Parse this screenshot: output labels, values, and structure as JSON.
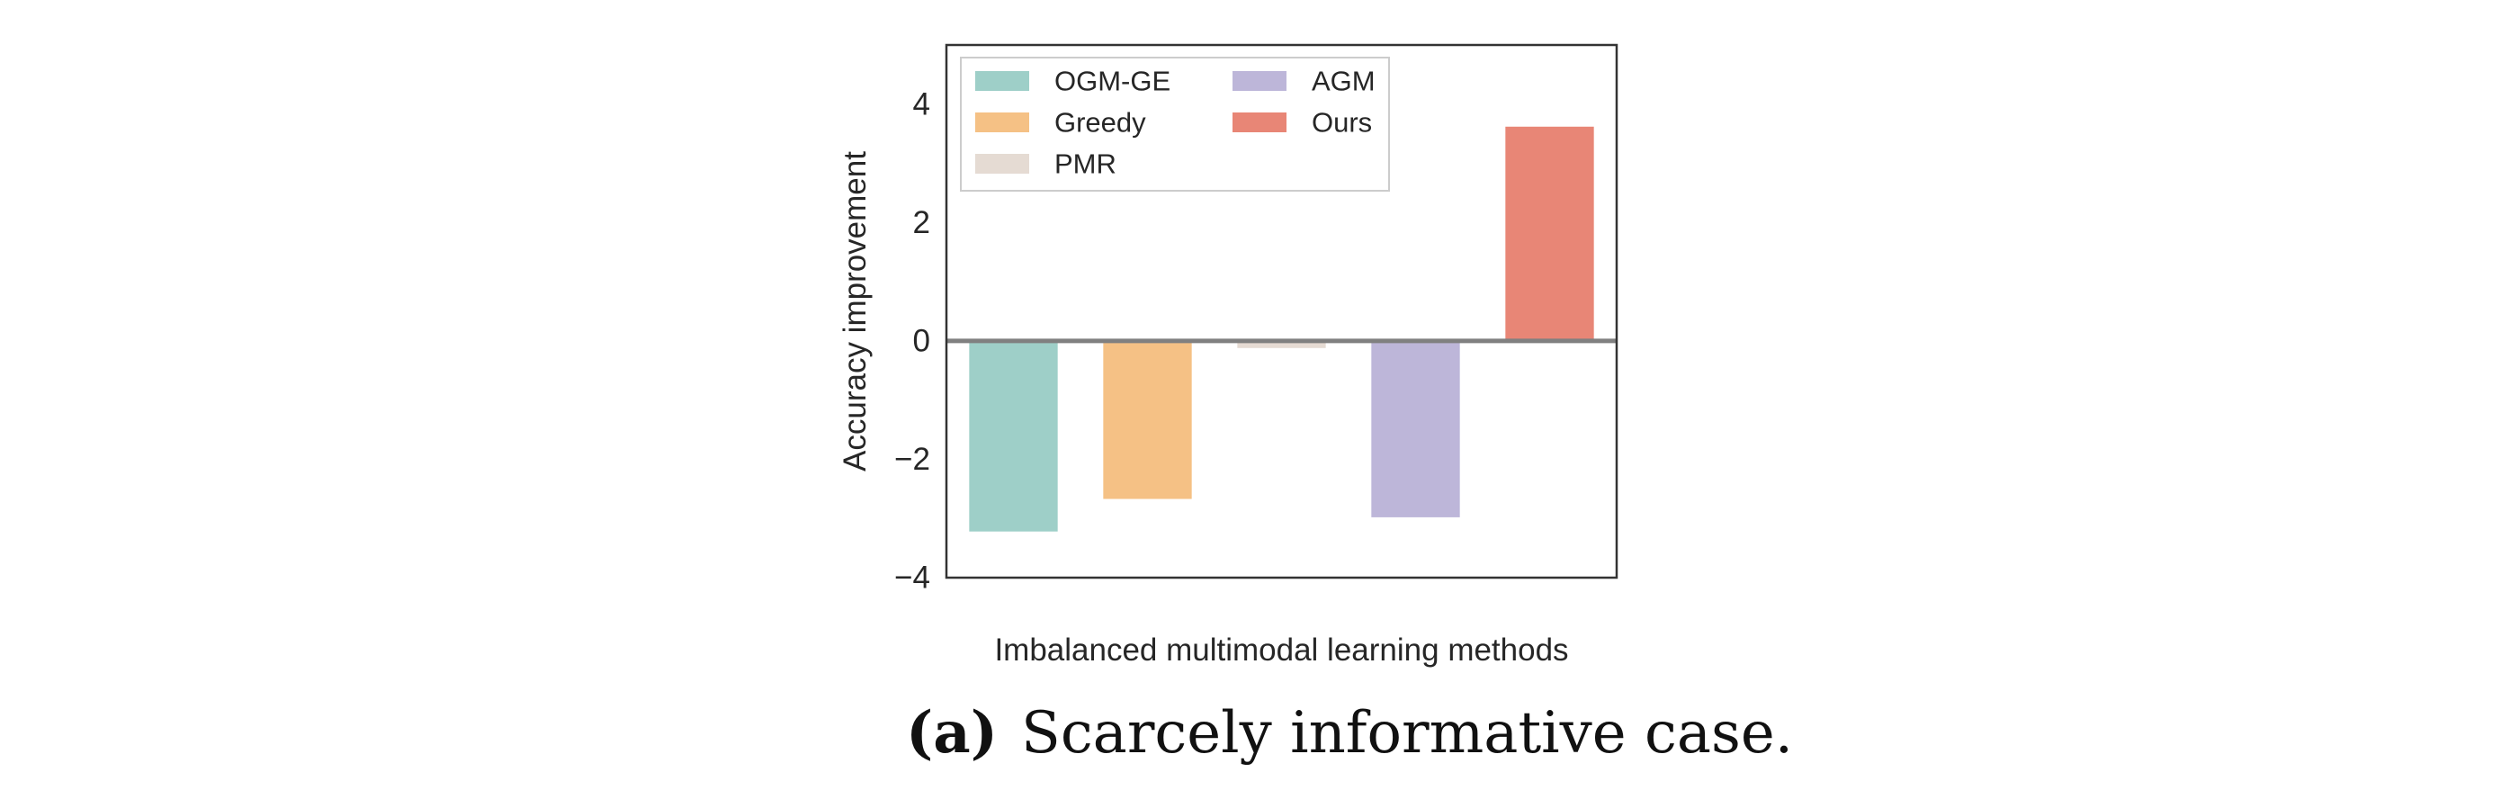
{
  "chart_data": {
    "type": "bar",
    "title": "",
    "xlabel": "Imbalanced multimodal learning methods",
    "ylabel": "Accuracy improvement",
    "ylim": [
      -4,
      5
    ],
    "yticks": [
      4,
      2,
      0,
      -2,
      -4
    ],
    "ytick_labels": [
      "4",
      "2",
      "0",
      "−2",
      "−4"
    ],
    "categories": [
      "OGM-GE",
      "Greedy",
      "PMR",
      "AGM",
      "Ours"
    ],
    "values": [
      -3.22,
      -2.67,
      -0.12,
      -2.98,
      3.62
    ],
    "colors": [
      "#9ecfc8",
      "#f5c185",
      "#e5dbd3",
      "#bdb6d9",
      "#e88676"
    ],
    "legend": {
      "placement": "upper-left",
      "entries": [
        "OGM-GE",
        "Greedy",
        "PMR",
        "AGM",
        "Ours"
      ]
    },
    "zero_line": true,
    "grid": false
  },
  "caption": {
    "label": "(a)",
    "text": "Scarcely informative case."
  }
}
